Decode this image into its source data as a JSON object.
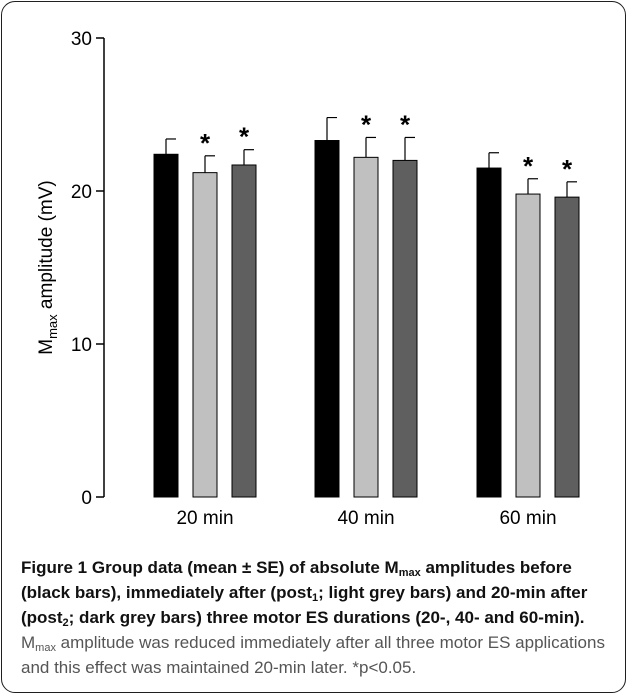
{
  "chart_data": {
    "type": "bar",
    "categories": [
      "20 min",
      "40 min",
      "60 min"
    ],
    "series": [
      {
        "color": "#000000",
        "values": [
          22.4,
          23.3,
          21.5
        ],
        "errors": [
          1.0,
          1.5,
          1.0
        ]
      },
      {
        "color": "#c0c0c0",
        "values": [
          21.2,
          22.2,
          19.8
        ],
        "errors": [
          1.1,
          1.3,
          1.0
        ]
      },
      {
        "color": "#5f5f5f",
        "values": [
          21.7,
          22.0,
          19.6
        ],
        "errors": [
          1.0,
          1.5,
          1.0
        ]
      }
    ],
    "significance": [
      [
        false,
        false,
        false
      ],
      [
        true,
        true,
        true
      ],
      [
        true,
        true,
        true
      ]
    ],
    "significance_marker": "*",
    "ylabel_main": "M",
    "ylabel_sub": "max",
    "ylabel_rest": " amplitude (mV)",
    "ylim": [
      0,
      30
    ],
    "yticks": [
      0,
      10,
      20,
      30
    ],
    "grid": false,
    "legend": "none"
  },
  "caption": {
    "bold_1": "Figure 1 Group data (mean ± SE) of absolute M",
    "bold_sub_1": "max",
    "bold_2": " amplitudes before (black bars), immediately after (post",
    "bold_sub_2": "1",
    "bold_3": "; light grey bars) and 20-min after (post",
    "bold_sub_3": "2",
    "bold_4": "; dark grey bars) three motor ES durations (20-, 40- and 60-min).",
    "normal_1": " M",
    "normal_sub_1": "max",
    "normal_2": " amplitude was reduced immediately after all three motor ES applications and this effect was maintained 20-min later. *p<0.05."
  }
}
